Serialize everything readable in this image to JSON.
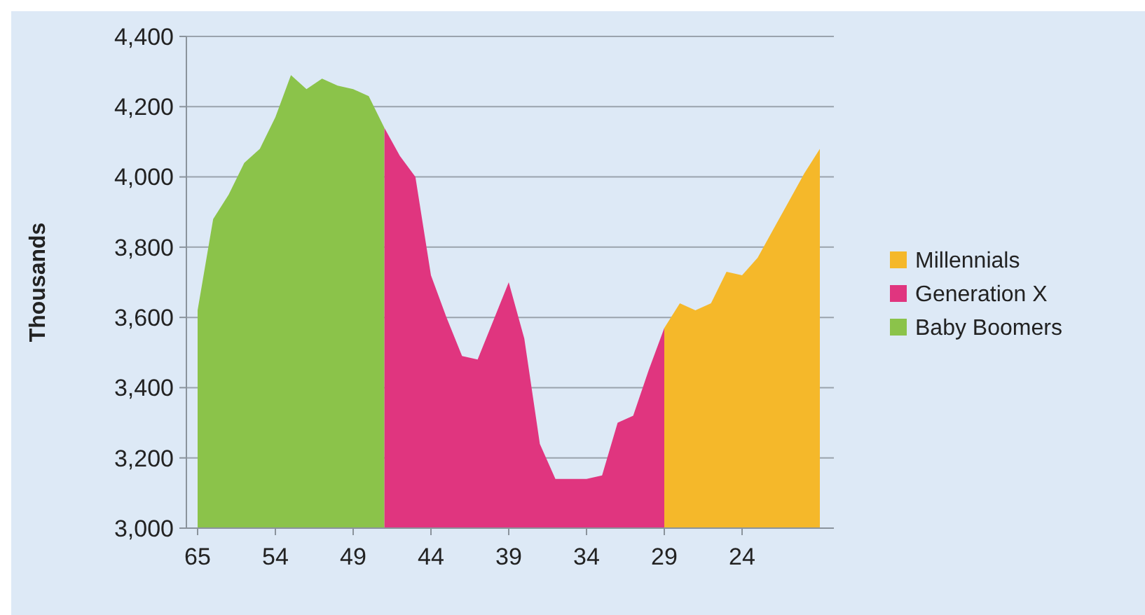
{
  "chart_data": {
    "type": "area",
    "ylabel": "Thousands",
    "categories": [
      "65",
      null,
      null,
      null,
      null,
      "54",
      null,
      null,
      null,
      null,
      "49",
      null,
      null,
      null,
      null,
      "44",
      null,
      null,
      null,
      null,
      "39",
      null,
      null,
      null,
      null,
      "34",
      null,
      null,
      null,
      null,
      "29",
      null,
      null,
      null,
      null,
      "24",
      null,
      null,
      null,
      null,
      null
    ],
    "series": [
      {
        "name": "Millennials",
        "color": "#f5b82a",
        "values": [
          null,
          null,
          null,
          null,
          null,
          null,
          null,
          null,
          null,
          null,
          null,
          null,
          null,
          null,
          null,
          null,
          null,
          null,
          null,
          null,
          null,
          null,
          null,
          null,
          null,
          null,
          null,
          null,
          null,
          null,
          3570,
          3640,
          3620,
          3640,
          3730,
          3720,
          3770,
          3850,
          3930,
          4010,
          4080
        ]
      },
      {
        "name": "Generation X",
        "color": "#e0357f",
        "values": [
          null,
          null,
          null,
          null,
          null,
          null,
          null,
          null,
          null,
          null,
          null,
          null,
          4140,
          4060,
          4000,
          3720,
          3600,
          3490,
          3480,
          3590,
          3700,
          3540,
          3240,
          3140,
          3140,
          3140,
          3150,
          3300,
          3320,
          3450,
          3570,
          null,
          null,
          null,
          null,
          null,
          null,
          null,
          null,
          null,
          null
        ]
      },
      {
        "name": "Baby Boomers",
        "color": "#8bc34a",
        "values": [
          3620,
          3880,
          3950,
          4040,
          4080,
          4170,
          4290,
          4250,
          4280,
          4260,
          4250,
          4230,
          4140,
          null,
          null,
          null,
          null,
          null,
          null,
          null,
          null,
          null,
          null,
          null,
          null,
          null,
          null,
          null,
          null,
          null,
          null,
          null,
          null,
          null,
          null,
          null,
          null,
          null,
          null,
          null,
          null
        ]
      }
    ],
    "ylim": [
      3000,
      4400
    ],
    "yticks": [
      {
        "value": 3000,
        "label": "3,000"
      },
      {
        "value": 3200,
        "label": "3,200"
      },
      {
        "value": 3400,
        "label": "3,400"
      },
      {
        "value": 3600,
        "label": "3,600"
      },
      {
        "value": 3800,
        "label": "3,800"
      },
      {
        "value": 4000,
        "label": "4,000"
      },
      {
        "value": 4200,
        "label": "4,200"
      },
      {
        "value": 4400,
        "label": "4,400"
      }
    ],
    "grid": "y",
    "legend": "right"
  }
}
